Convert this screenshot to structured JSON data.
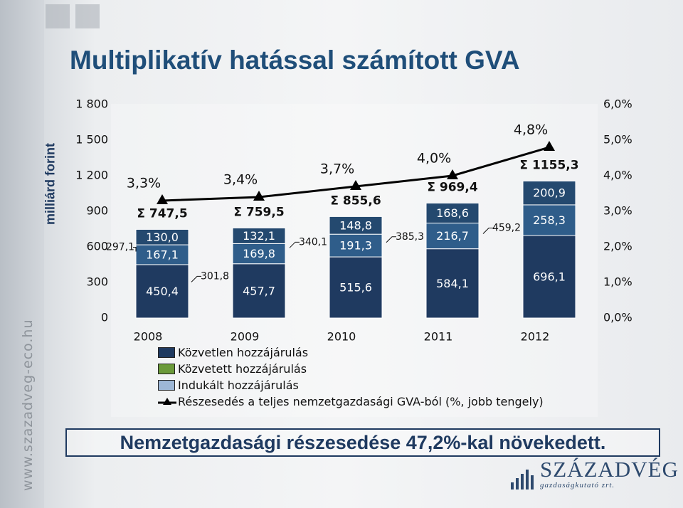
{
  "page": {
    "title": "Multiplikatív hatással számított GVA",
    "banner": "Nemzetgazdasági részesedése 47,2%-kal növekedett.",
    "side_url": "www.szazadveg-eco.hu",
    "logo": {
      "name": "SZÁZADVÉG",
      "subtitle": "gazdaságkutató zrt."
    }
  },
  "chart_data": {
    "type": "bar",
    "stacked": true,
    "categories": [
      "2008",
      "2009",
      "2010",
      "2011",
      "2012"
    ],
    "ylabel": "milliárd forint",
    "ylim": [
      0,
      1800
    ],
    "y_ticks": [
      "0",
      "300",
      "600",
      "900",
      "1 200",
      "1 500",
      "1 800"
    ],
    "y2lim": [
      0,
      6
    ],
    "y2_ticks": [
      "0,0%",
      "1,0%",
      "2,0%",
      "3,0%",
      "4,0%",
      "5,0%",
      "6,0%"
    ],
    "legend_position": "bottom",
    "series": [
      {
        "name": "Közvetlen hozzájárulás",
        "color": "#1f3a60",
        "label_color": "#ffffff",
        "values": [
          450.4,
          457.7,
          515.6,
          584.1,
          696.1
        ],
        "labels": [
          "450,4",
          "457,7",
          "515,6",
          "584,1",
          "696,1"
        ]
      },
      {
        "name": "Közvetett hozzájárulás",
        "color": "#2f5d8a",
        "label_color": "#ffffff",
        "values": [
          167.1,
          169.8,
          191.3,
          216.7,
          258.3
        ],
        "labels": [
          "167,1",
          "169,8",
          "191,3",
          "216,7",
          "258,3"
        ]
      },
      {
        "name": "Indukált hozzájárulás",
        "color": "#24496f",
        "label_color": "#ffffff",
        "values": [
          130.0,
          132.1,
          148.8,
          168.6,
          200.9
        ],
        "labels": [
          "130,0",
          "132,1",
          "148,8",
          "168,6",
          "200,9"
        ]
      }
    ],
    "totals": [
      "Σ 747,5",
      "Σ 759,5",
      "Σ 855,6",
      "Σ 969,4",
      "Σ 1155,3"
    ],
    "callouts": [
      {
        "after_index": 0,
        "value": 297.1,
        "label": "297,1"
      },
      {
        "after_index": 0,
        "value": 301.8,
        "label": "301,8"
      },
      {
        "after_index": 1,
        "value": 340.1,
        "label": "340,1"
      },
      {
        "after_index": 2,
        "value": 385.3,
        "label": "385,3"
      },
      {
        "after_index": 3,
        "value": 459.2,
        "label": "459,2"
      }
    ],
    "share_series": {
      "name": "Részesedés a teljes nemzetgazdasági GVA-ból (%, jobb tengely)",
      "axis": "right",
      "color": "#000000",
      "values": [
        3.3,
        3.4,
        3.7,
        4.0,
        4.8
      ],
      "labels": [
        "3,3%",
        "3,4%",
        "3,7%",
        "4,0%",
        "4,8%"
      ]
    },
    "legend_swatch_colors": [
      "#1f3a60",
      "#6a9a3a",
      "#9db7d6"
    ]
  }
}
